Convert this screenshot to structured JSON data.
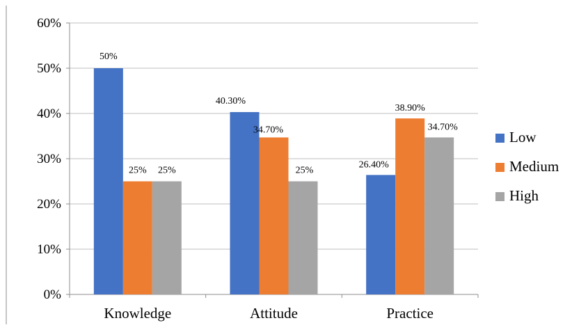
{
  "chart_data": {
    "type": "bar",
    "title": "",
    "xlabel": "",
    "ylabel": "",
    "categories": [
      "Knowledge",
      "Attitude",
      "Practice"
    ],
    "series": [
      {
        "name": "Low",
        "color": "#4472C4",
        "values": [
          50,
          40.3,
          26.4
        ],
        "labels": [
          "50%",
          "40.30%",
          "26.40%"
        ]
      },
      {
        "name": "Medium",
        "color": "#ED7D31",
        "values": [
          25,
          34.7,
          38.9
        ],
        "labels": [
          "25%",
          "34.70%",
          "38.90%"
        ]
      },
      {
        "name": "High",
        "color": "#A5A5A5",
        "values": [
          25,
          25,
          34.7
        ],
        "labels": [
          "25%",
          "25%",
          "34.70%"
        ]
      }
    ],
    "ylim": [
      0,
      60
    ],
    "yticks": [
      0,
      10,
      20,
      30,
      40,
      50,
      60
    ],
    "ytick_labels": [
      "0%",
      "10%",
      "20%",
      "30%",
      "40%",
      "50%",
      "60%"
    ],
    "grid": true,
    "legend_position": "right"
  }
}
